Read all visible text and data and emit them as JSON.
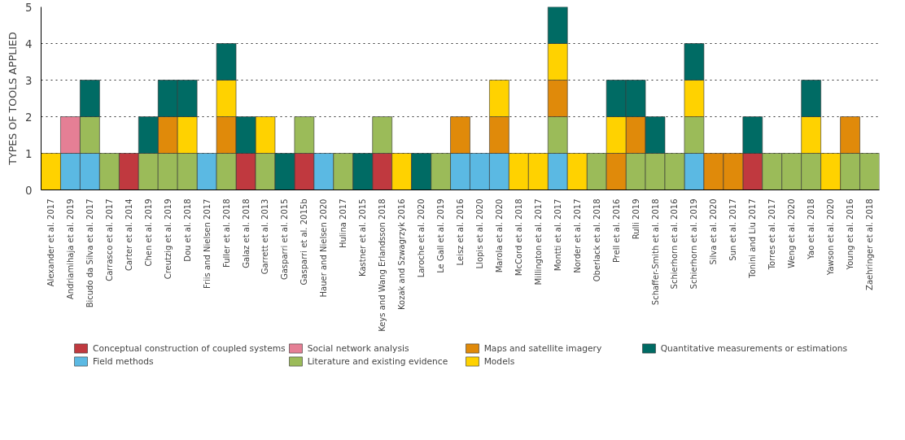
{
  "chart_data": {
    "type": "bar",
    "stacked": true,
    "ylabel": "TYPES OF TOOLS APPLIED",
    "categories": [
      "Alexander et al. 2017",
      "Andriamihaja et al. 2019",
      "Bicudo da Silva et al. 2017",
      "Carrasco et al. 2017",
      "Carter et al. 2014",
      "Chen et al. 2019",
      "Creutzig et al. 2019",
      "Dou et al. 2018",
      "Friis and Nielsen 2017",
      "Fuller et al. 2018",
      "Galaz et al. 2018",
      "Garrett et al. 2013",
      "Gasparri et al. 2015",
      "Gasparri et al. 2015b",
      "Hauer and Nielsen 2020",
      "Hulina 2017",
      "Kastner et al. 2015",
      "Keys and Wang Erlandsson 2018",
      "Kozak and Szwagrzyk 2016",
      "Laroche et al. 2020",
      "Le Gall et al. 2019",
      "Leisz et al. 2016",
      "Llopis et al. 2020",
      "Marola et al. 2020",
      "McCord et al. 2018",
      "Millington et al. 2017",
      "Montti et al. 2017",
      "Norder et al. 2017",
      "Oberlack et al. 2018",
      "Prell et al. 2016",
      "Rulli 2019",
      "Schaffer-Smith et al. 2018",
      "Schierhorn et al. 2016",
      "Schierhorn et al. 2019",
      "Silva et al. 2020",
      "Sun et al. 2017",
      "Tonini and Liu 2017",
      "Torres et al. 2017",
      "Weng et al. 2020",
      "Yao et al. 2018",
      "Yawson et al. 2020",
      "Young et al. 2016",
      "Zaehringer et al. 2018"
    ],
    "series": [
      {
        "name": "Conceptual construction of coupled systems",
        "color": "#c0393f",
        "values": [
          null,
          null,
          null,
          null,
          1,
          null,
          null,
          null,
          null,
          null,
          1,
          null,
          null,
          1,
          null,
          null,
          null,
          1,
          null,
          null,
          null,
          null,
          null,
          null,
          null,
          null,
          null,
          null,
          null,
          null,
          null,
          null,
          null,
          null,
          null,
          null,
          1,
          null,
          null,
          null,
          null,
          null,
          null
        ]
      },
      {
        "name": "Field methods",
        "color": "#5bb9e3",
        "values": [
          null,
          1,
          1,
          null,
          null,
          null,
          null,
          null,
          1,
          null,
          null,
          null,
          null,
          null,
          1,
          null,
          null,
          null,
          null,
          null,
          null,
          1,
          1,
          1,
          null,
          null,
          1,
          null,
          null,
          null,
          null,
          null,
          null,
          1,
          null,
          null,
          null,
          null,
          null,
          null,
          null,
          null,
          null
        ]
      },
      {
        "name": "Social network analysis",
        "color": "#e57f95",
        "values": [
          null,
          1,
          null,
          null,
          null,
          null,
          null,
          null,
          null,
          null,
          null,
          null,
          null,
          null,
          null,
          null,
          null,
          null,
          null,
          null,
          null,
          null,
          null,
          null,
          null,
          null,
          null,
          null,
          null,
          null,
          null,
          null,
          null,
          null,
          null,
          null,
          null,
          null,
          null,
          null,
          null,
          null,
          null
        ]
      },
      {
        "name": "Literature and existing evidence",
        "color": "#9bbb59",
        "values": [
          null,
          null,
          1,
          1,
          null,
          1,
          1,
          1,
          null,
          1,
          null,
          1,
          null,
          1,
          null,
          1,
          null,
          1,
          null,
          null,
          1,
          null,
          null,
          null,
          null,
          null,
          1,
          null,
          1,
          null,
          1,
          1,
          1,
          1,
          null,
          null,
          null,
          1,
          1,
          1,
          null,
          1,
          1
        ]
      },
      {
        "name": "Maps and satellite imagery",
        "color": "#e08a0a",
        "values": [
          null,
          null,
          null,
          null,
          null,
          null,
          1,
          null,
          null,
          1,
          null,
          null,
          null,
          null,
          null,
          null,
          null,
          null,
          null,
          null,
          null,
          1,
          null,
          1,
          null,
          null,
          1,
          null,
          null,
          1,
          1,
          null,
          null,
          null,
          1,
          1,
          null,
          null,
          null,
          null,
          null,
          1,
          null
        ]
      },
      {
        "name": "Models",
        "color": "#ffd200",
        "values": [
          1,
          null,
          null,
          null,
          null,
          null,
          null,
          1,
          null,
          1,
          null,
          1,
          null,
          null,
          null,
          null,
          null,
          null,
          1,
          null,
          null,
          null,
          null,
          1,
          1,
          1,
          1,
          1,
          null,
          1,
          null,
          null,
          null,
          1,
          null,
          null,
          null,
          null,
          null,
          1,
          1,
          null,
          null
        ]
      },
      {
        "name": "Quantitative measurements or estimations",
        "color": "#006b64",
        "values": [
          null,
          null,
          1,
          null,
          null,
          1,
          1,
          1,
          null,
          1,
          1,
          null,
          1,
          null,
          null,
          null,
          1,
          null,
          null,
          1,
          null,
          null,
          null,
          null,
          null,
          null,
          1,
          null,
          null,
          1,
          1,
          1,
          null,
          1,
          null,
          null,
          1,
          null,
          null,
          1,
          null,
          null,
          null
        ]
      }
    ],
    "ylim": [
      0,
      5
    ],
    "yticks": [
      0,
      1,
      2,
      3,
      4,
      5
    ],
    "grid": "y",
    "legend": "bottom"
  }
}
